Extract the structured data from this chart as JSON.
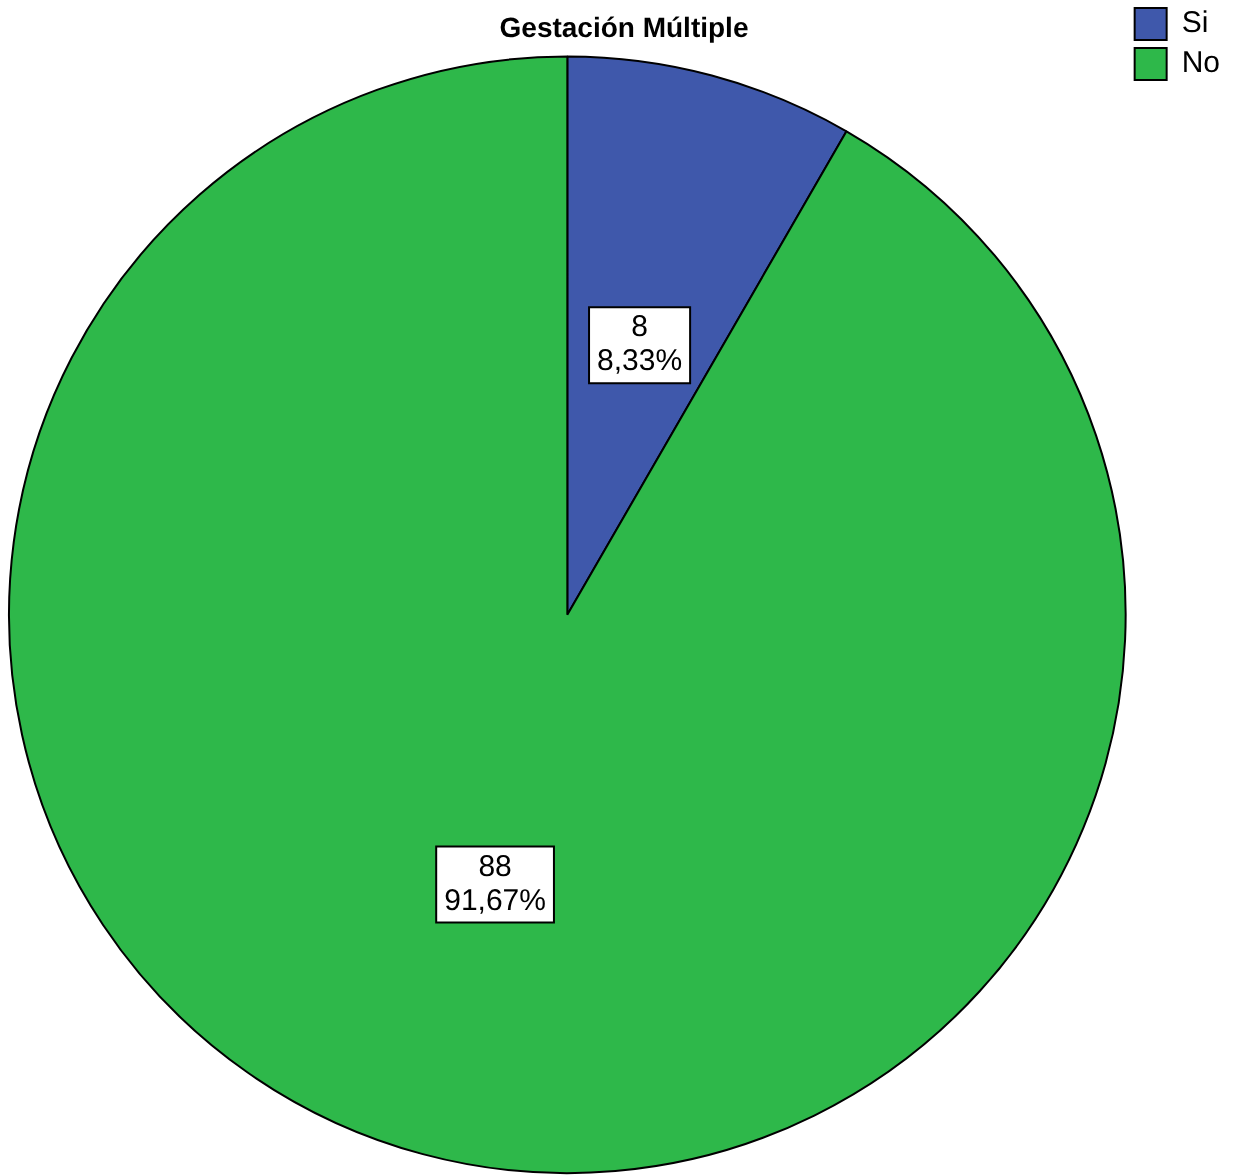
{
  "chart_data": {
    "type": "pie",
    "title": "Gestación Múltiple",
    "categories": [
      "Si",
      "No"
    ],
    "values": [
      8,
      88
    ],
    "colors": [
      "#3f58ab",
      "#2eb84a"
    ],
    "value_labels": [
      "8\n8,33%",
      "88\n91,67%"
    ],
    "legend": "top right"
  }
}
